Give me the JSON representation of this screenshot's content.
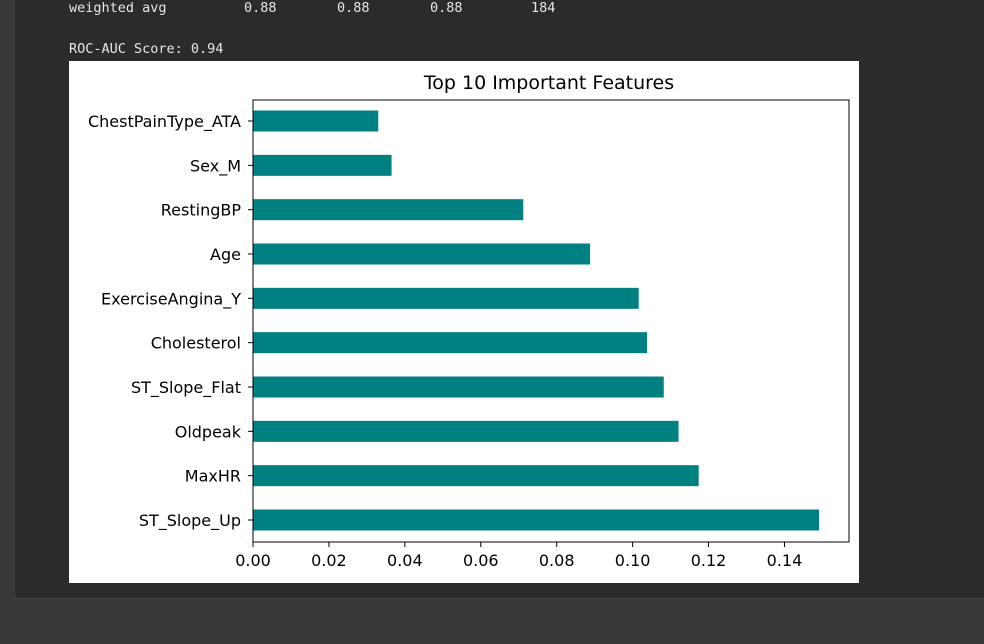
{
  "report_row": {
    "label": "weighted avg",
    "precision": "0.88",
    "recall": "0.88",
    "f1": "0.88",
    "support": "184"
  },
  "roc_line": "ROC-AUC Score: 0.94",
  "colors": {
    "bar": "#008080",
    "background": "#383838",
    "cell": "#2b2b2b"
  },
  "chart_data": {
    "type": "bar",
    "orientation": "horizontal",
    "title": "Top 10 Important Features",
    "xlabel": "",
    "ylabel": "",
    "xlim": [
      0,
      0.157
    ],
    "xticks": [
      "0.00",
      "0.02",
      "0.04",
      "0.06",
      "0.08",
      "0.10",
      "0.12",
      "0.14"
    ],
    "grid": false,
    "categories": [
      "ChestPainType_ATA",
      "Sex_M",
      "RestingBP",
      "Age",
      "ExerciseAngina_Y",
      "Cholesterol",
      "ST_Slope_Flat",
      "Oldpeak",
      "MaxHR",
      "ST_Slope_Up"
    ],
    "values": [
      0.033,
      0.0365,
      0.0712,
      0.0888,
      0.1016,
      0.1038,
      0.1082,
      0.1121,
      0.1174,
      0.1491
    ]
  }
}
